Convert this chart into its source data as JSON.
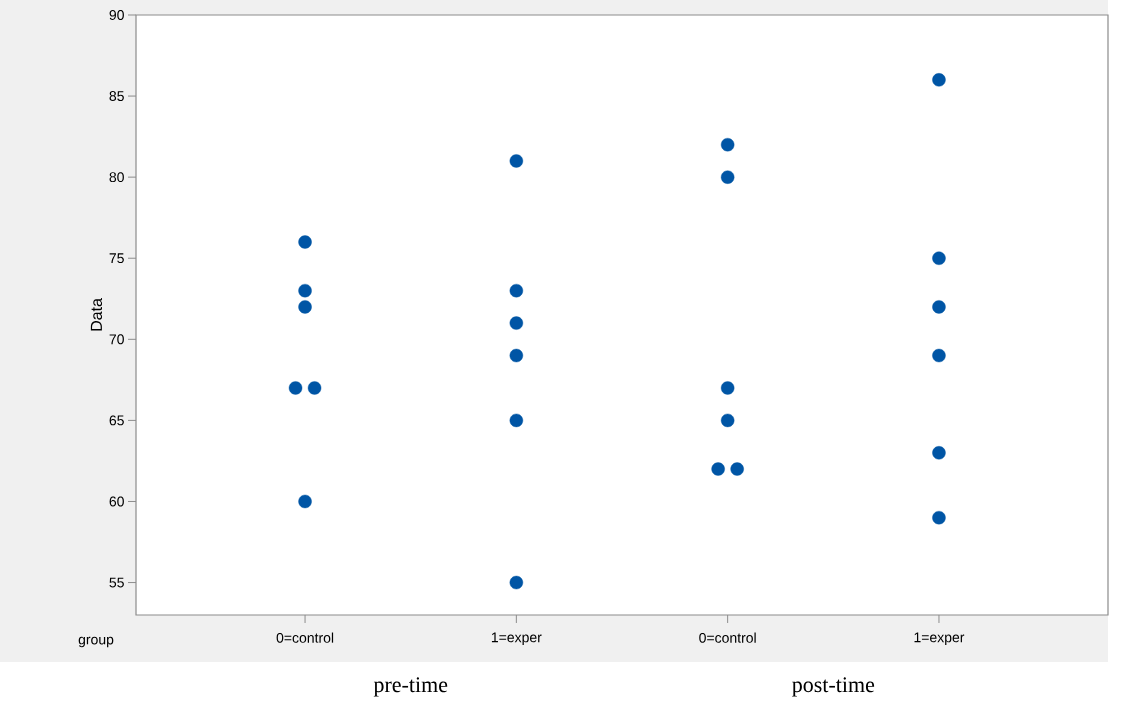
{
  "chart_data": {
    "type": "scatter",
    "categories": [
      "0=control",
      "1=exper",
      "0=control",
      "1=exper"
    ],
    "xlabel": "group",
    "ylabel": "Data",
    "ylim": [
      53,
      90
    ],
    "yticks": [
      55,
      60,
      65,
      70,
      75,
      80,
      85,
      90
    ],
    "marker": "circle",
    "grid": false,
    "series": [
      {
        "color": "#0055a5",
        "values": [
          76,
          81,
          82,
          86
        ]
      },
      {
        "color": "#0055a5",
        "values": [
          73,
          73,
          80,
          75
        ]
      },
      {
        "color": "#0055a5",
        "values": [
          72,
          71,
          67,
          72
        ]
      },
      {
        "color": "#0055a5",
        "values": [
          67,
          69,
          65,
          69
        ]
      },
      {
        "color": "#0055a5",
        "values": [
          67,
          65,
          62,
          63
        ]
      },
      {
        "color": "#0055a5",
        "values": [
          60,
          55,
          62,
          59
        ]
      }
    ],
    "annotations": [
      "pre-time",
      "post-time"
    ]
  }
}
